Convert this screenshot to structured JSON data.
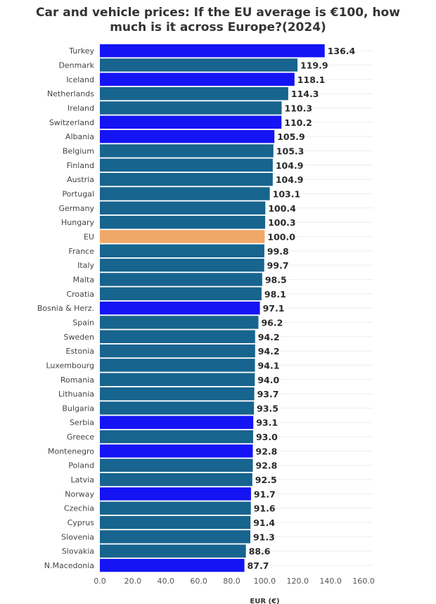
{
  "chart_data": {
    "type": "bar",
    "orientation": "horizontal",
    "title_line1": "Car and vehicle prices: If the EU average is €100, how",
    "title_line2": "much is it across Europe?(2024)",
    "xlabel": "EUR (€)",
    "ylabel": "",
    "xlim": [
      0,
      160
    ],
    "xticks": [
      "0.0",
      "20.0",
      "40.0",
      "60.0",
      "80.0",
      "100.0",
      "120.0",
      "140.0",
      "160.0"
    ],
    "grid": true,
    "colors": {
      "eu_member": "#17648f",
      "non_eu": "#1414f5",
      "eu_average": "#f0a868"
    },
    "categories": [
      "Turkey",
      "Denmark",
      "Iceland",
      "Netherlands",
      "Ireland",
      "Switzerland",
      "Albania",
      "Belgium",
      "Finland",
      "Austria",
      "Portugal",
      "Germany",
      "Hungary",
      "EU",
      "France",
      "Italy",
      "Malta",
      "Croatia",
      "Bosnia & Herz.",
      "Spain",
      "Sweden",
      "Estonia",
      "Luxembourg",
      "Romania",
      "Lithuania",
      "Bulgaria",
      "Serbia",
      "Greece",
      "Montenegro",
      "Poland",
      "Latvia",
      "Norway",
      "Czechia",
      "Cyprus",
      "Slovenia",
      "Slovakia",
      "N.Macedonia"
    ],
    "values": [
      136.4,
      119.9,
      118.1,
      114.3,
      110.3,
      110.2,
      105.9,
      105.3,
      104.9,
      104.9,
      103.1,
      100.4,
      100.3,
      100.0,
      99.8,
      99.7,
      98.5,
      98.1,
      97.1,
      96.2,
      94.2,
      94.2,
      94.1,
      94.0,
      93.7,
      93.5,
      93.1,
      93.0,
      92.8,
      92.8,
      92.5,
      91.7,
      91.6,
      91.4,
      91.3,
      88.6,
      87.7
    ],
    "labels": [
      "136.4",
      "119.9",
      "118.1",
      "114.3",
      "110.3",
      "110.2",
      "105.9",
      "105.3",
      "104.9",
      "104.9",
      "103.1",
      "100.4",
      "100.3",
      "100.0",
      "99.8",
      "99.7",
      "98.5",
      "98.1",
      "97.1",
      "96.2",
      "94.2",
      "94.2",
      "94.1",
      "94.0",
      "93.7",
      "93.5",
      "93.1",
      "93.0",
      "92.8",
      "92.8",
      "92.5",
      "91.7",
      "91.6",
      "91.4",
      "91.3",
      "88.6",
      "87.7"
    ],
    "group": [
      "non_eu",
      "eu_member",
      "non_eu",
      "eu_member",
      "eu_member",
      "non_eu",
      "non_eu",
      "eu_member",
      "eu_member",
      "eu_member",
      "eu_member",
      "eu_member",
      "eu_member",
      "eu_average",
      "eu_member",
      "eu_member",
      "eu_member",
      "eu_member",
      "non_eu",
      "eu_member",
      "eu_member",
      "eu_member",
      "eu_member",
      "eu_member",
      "eu_member",
      "eu_member",
      "non_eu",
      "eu_member",
      "non_eu",
      "eu_member",
      "eu_member",
      "non_eu",
      "eu_member",
      "eu_member",
      "eu_member",
      "eu_member",
      "non_eu"
    ]
  }
}
